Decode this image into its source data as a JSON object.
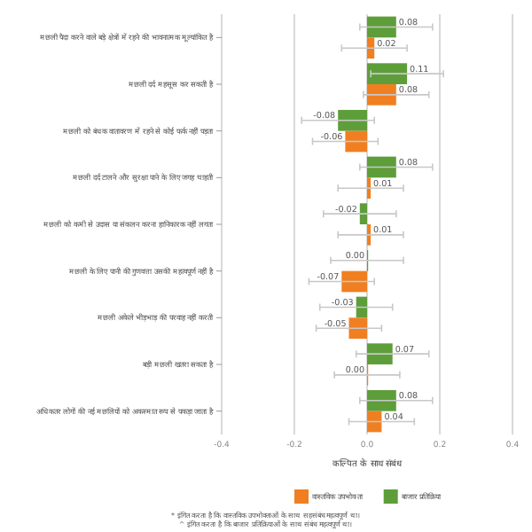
{
  "chart_data": {
    "type": "bar",
    "orientation": "horizontal",
    "xlabel": "कल्पित के साथ संबंध",
    "categories": [
      "मछली पैदा करने वाले बड़े क्षेत्रों में रहने की भावनात्मक मूल्यांकित है",
      "मछली दर्द महसूस कर सकती है",
      "मछली को बंधक वातावरण में रहने से कोई फर्क नहीं पड़ता",
      "मछली दर्द टालने और सुरक्षा पाने के लिए जगह चाहती",
      "मछली को कमी से उदास या संकलन करना हानिकारक नहीं लगता",
      "मछली के लिए पानी की गुणवत्ता उसकी महत्वपूर्ण नहीं है",
      "मछली अकेले भीड़भाड़ की परवाह नहीं करती",
      "बड़ी मछली खतरा सकता है",
      "अधिकतर लोगों की नई मछलियों को अकस्मात रूप से पकड़ा जाता है"
    ],
    "series": [
      {
        "name": "बाजार प्रतिक्रिया",
        "color": "#5e9e3a",
        "values": [
          0.08,
          0.11,
          -0.08,
          0.08,
          -0.02,
          0.0,
          -0.03,
          0.07,
          0.08
        ],
        "errors": [
          0.1,
          0.1,
          0.1,
          0.1,
          0.1,
          0.1,
          0.1,
          0.1,
          0.1
        ],
        "value_labels": [
          "0.08",
          "0.11",
          "-0.08",
          "0.08",
          "-0.02",
          "0.00",
          "-0.03",
          "0.07",
          "0.08"
        ]
      },
      {
        "name": "वास्तविक उपभोक्ता",
        "color": "#f07f22",
        "values": [
          0.02,
          0.08,
          -0.06,
          0.01,
          0.01,
          -0.07,
          -0.05,
          0.0,
          0.04
        ],
        "errors": [
          0.09,
          0.09,
          0.09,
          0.09,
          0.09,
          0.09,
          0.09,
          0.09,
          0.09
        ],
        "value_labels": [
          "0.02",
          "0.08",
          "-0.06",
          "0.01",
          "0.01",
          "-0.07",
          "-0.05",
          "0.00",
          "0.04"
        ]
      }
    ],
    "xlim": [
      -0.4,
      0.4
    ],
    "xticks": [
      -0.4,
      -0.2,
      {
        "value": 0,
        "label": "0.0"
      },
      0.2,
      0.4
    ],
    "grid": "x",
    "legend": "bottom",
    "annotations": [
      "* इंगित करता है कि वास्तविक उपभोक्ताओं के साथ सहसंबंध महत्वपूर्ण था। ^ इंगित करता है कि बाजार प्रतिक्रियाओं के साथ संबंध महत्वपूर्ण था।"
    ]
  }
}
